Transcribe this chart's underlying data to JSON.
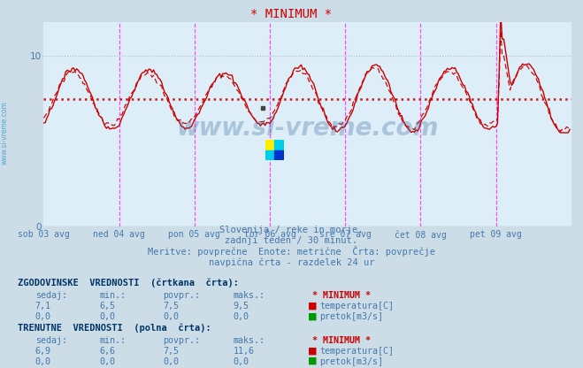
{
  "title": "* MINIMUM *",
  "title_color": "#cc0000",
  "fig_bg_color": "#ccdde8",
  "plot_bg_color": "#ddeef8",
  "xlim": [
    0,
    336
  ],
  "ylim": [
    0,
    12
  ],
  "yticks": [
    0,
    10
  ],
  "xlabel_ticks": [
    0,
    48,
    96,
    144,
    192,
    240,
    288
  ],
  "xlabel_labels": [
    "sob 03 avg",
    "ned 04 avg",
    "pon 05 avg",
    "tor 06 avg",
    "sre 07 avg",
    "čet 08 avg",
    "pet 09 avg"
  ],
  "avg_line_y": 7.5,
  "grid_color": "#aabbcc",
  "vline_color": "#ff44ff",
  "vline_positions": [
    48,
    96,
    144,
    192,
    240,
    288
  ],
  "line_color": "#cc0000",
  "flow_color": "#009900",
  "watermark_text": "www.si-vreme.com",
  "watermark_color": "#336699",
  "watermark_alpha": 0.3,
  "subtitle1": "Slovenija / reke in morje.",
  "subtitle2": "zadnji teden / 30 minut.",
  "subtitle3": "Meritve: povprečne  Enote: metrične  Črta: povprečje",
  "subtitle4": "navpična črta - razdelek 24 ur",
  "subtitle_color": "#4477aa",
  "table_header1": "ZGODOVINSKE  VREDNOSTI  (črtkana  črta):",
  "table_header2": "TRENUTNE  VREDNOSTI  (polna  črta):",
  "table_color": "#4477aa",
  "table_bold_color": "#003366",
  "col_headers": [
    "sedaj:",
    "min.:",
    "povpr.:",
    "maks.:"
  ],
  "hist_temp": [
    7.1,
    6.5,
    7.5,
    9.5
  ],
  "hist_flow": [
    0.0,
    0.0,
    0.0,
    0.0
  ],
  "curr_temp": [
    6.9,
    6.6,
    7.5,
    11.6
  ],
  "curr_flow": [
    0.0,
    0.0,
    0.0,
    0.0
  ],
  "label_temp": "temperatura[C]",
  "label_flow": "pretok[m3/s]",
  "label_min_star": "* MINIMUM *",
  "sidewater_color": "#3399cc",
  "logo_colors": [
    "#ffee00",
    "#00ccee",
    "#0033cc"
  ]
}
